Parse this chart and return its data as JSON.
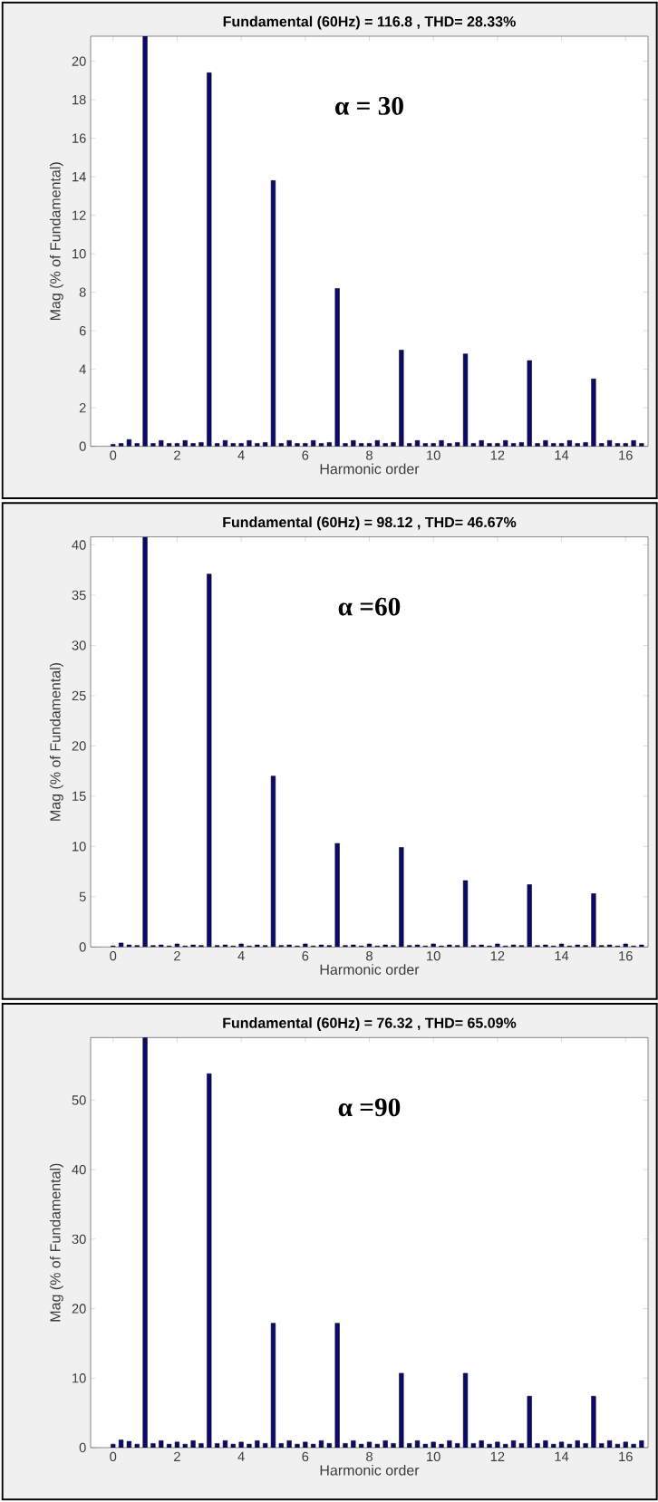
{
  "chart_data": [
    {
      "type": "bar",
      "title": "Fundamental (60Hz) = 116.8 , THD= 28.33%",
      "xlabel": "Harmonic order",
      "ylabel": "Mag (% of Fundamental)",
      "annotations": [
        "α = 30"
      ],
      "color": "#0a0a6e",
      "x": [
        0,
        0.25,
        0.5,
        0.75,
        1,
        1.25,
        1.5,
        1.75,
        2,
        2.25,
        2.5,
        2.75,
        3,
        3.25,
        3.5,
        3.75,
        4,
        4.25,
        4.5,
        4.75,
        5,
        5.25,
        5.5,
        5.75,
        6,
        6.25,
        6.5,
        6.75,
        7,
        7.25,
        7.5,
        7.75,
        8,
        8.25,
        8.5,
        8.75,
        9,
        9.25,
        9.5,
        9.75,
        10,
        10.25,
        10.5,
        10.75,
        11,
        11.25,
        11.5,
        11.75,
        12,
        12.25,
        12.5,
        12.75,
        13,
        13.25,
        13.5,
        13.75,
        14,
        14.25,
        14.5,
        14.75,
        15,
        15.25,
        15.5,
        15.75,
        16,
        16.25,
        16.5
      ],
      "values": [
        0.1,
        0.15,
        0.35,
        0.15,
        21.3,
        0.15,
        0.3,
        0.15,
        0.15,
        0.3,
        0.15,
        0.2,
        19.4,
        0.15,
        0.3,
        0.15,
        0.15,
        0.3,
        0.15,
        0.2,
        13.8,
        0.15,
        0.3,
        0.15,
        0.15,
        0.3,
        0.15,
        0.2,
        8.2,
        0.15,
        0.3,
        0.15,
        0.15,
        0.3,
        0.15,
        0.2,
        5.0,
        0.15,
        0.3,
        0.15,
        0.15,
        0.3,
        0.15,
        0.2,
        4.8,
        0.15,
        0.3,
        0.15,
        0.15,
        0.3,
        0.15,
        0.2,
        4.45,
        0.15,
        0.3,
        0.15,
        0.15,
        0.3,
        0.15,
        0.2,
        3.5,
        0.15,
        0.3,
        0.15,
        0.15,
        0.3,
        0.15
      ],
      "xlim": [
        -0.7,
        16.7
      ],
      "ylim": [
        0,
        21.3
      ],
      "xticks": [
        0,
        2,
        4,
        6,
        8,
        10,
        12,
        14,
        16
      ],
      "yticks": [
        0,
        2,
        4,
        6,
        8,
        10,
        12,
        14,
        16,
        18,
        20
      ]
    },
    {
      "type": "bar",
      "title": "Fundamental (60Hz) = 98.12 , THD= 46.67%",
      "xlabel": "Harmonic order",
      "ylabel": "Mag (% of Fundamental)",
      "annotations": [
        "α =60"
      ],
      "color": "#0a0a6e",
      "x": [
        0,
        0.25,
        0.5,
        0.75,
        1,
        1.25,
        1.5,
        1.75,
        2,
        2.25,
        2.5,
        2.75,
        3,
        3.25,
        3.5,
        3.75,
        4,
        4.25,
        4.5,
        4.75,
        5,
        5.25,
        5.5,
        5.75,
        6,
        6.25,
        6.5,
        6.75,
        7,
        7.25,
        7.5,
        7.75,
        8,
        8.25,
        8.5,
        8.75,
        9,
        9.25,
        9.5,
        9.75,
        10,
        10.25,
        10.5,
        10.75,
        11,
        11.25,
        11.5,
        11.75,
        12,
        12.25,
        12.5,
        12.75,
        13,
        13.25,
        13.5,
        13.75,
        14,
        14.25,
        14.5,
        14.75,
        15,
        15.25,
        15.5,
        15.75,
        16,
        16.25,
        16.5
      ],
      "values": [
        0.1,
        0.4,
        0.2,
        0.15,
        40.8,
        0.15,
        0.2,
        0.1,
        0.3,
        0.1,
        0.2,
        0.15,
        37.1,
        0.15,
        0.2,
        0.1,
        0.3,
        0.1,
        0.2,
        0.15,
        17.0,
        0.15,
        0.2,
        0.1,
        0.3,
        0.1,
        0.2,
        0.15,
        10.3,
        0.15,
        0.2,
        0.1,
        0.3,
        0.1,
        0.2,
        0.15,
        9.9,
        0.15,
        0.2,
        0.1,
        0.3,
        0.1,
        0.2,
        0.15,
        6.6,
        0.15,
        0.2,
        0.1,
        0.3,
        0.1,
        0.2,
        0.15,
        6.2,
        0.15,
        0.2,
        0.1,
        0.3,
        0.1,
        0.2,
        0.15,
        5.3,
        0.15,
        0.2,
        0.1,
        0.3,
        0.1,
        0.2
      ],
      "xlim": [
        -0.7,
        16.7
      ],
      "ylim": [
        0,
        40.8
      ],
      "xticks": [
        0,
        2,
        4,
        6,
        8,
        10,
        12,
        14,
        16
      ],
      "yticks": [
        0,
        5,
        10,
        15,
        20,
        25,
        30,
        35,
        40
      ]
    },
    {
      "type": "bar",
      "title": "Fundamental (60Hz) = 76.32 , THD= 65.09%",
      "xlabel": "Harmonic order",
      "ylabel": "Mag (% of Fundamental)",
      "annotations": [
        "α =90"
      ],
      "color": "#0a0a6e",
      "x": [
        0,
        0.25,
        0.5,
        0.75,
        1,
        1.25,
        1.5,
        1.75,
        2,
        2.25,
        2.5,
        2.75,
        3,
        3.25,
        3.5,
        3.75,
        4,
        4.25,
        4.5,
        4.75,
        5,
        5.25,
        5.5,
        5.75,
        6,
        6.25,
        6.5,
        6.75,
        7,
        7.25,
        7.5,
        7.75,
        8,
        8.25,
        8.5,
        8.75,
        9,
        9.25,
        9.5,
        9.75,
        10,
        10.25,
        10.5,
        10.75,
        11,
        11.25,
        11.5,
        11.75,
        12,
        12.25,
        12.5,
        12.75,
        13,
        13.25,
        13.5,
        13.75,
        14,
        14.25,
        14.5,
        14.75,
        15,
        15.25,
        15.5,
        15.75,
        16,
        16.25,
        16.5
      ],
      "values": [
        0.5,
        1.1,
        0.9,
        0.5,
        59,
        0.6,
        1.0,
        0.5,
        0.8,
        0.5,
        1.0,
        0.6,
        53.8,
        0.6,
        1.0,
        0.5,
        0.8,
        0.5,
        1.0,
        0.6,
        17.9,
        0.6,
        1.0,
        0.5,
        0.8,
        0.5,
        1.0,
        0.6,
        17.9,
        0.6,
        1.0,
        0.5,
        0.8,
        0.5,
        1.0,
        0.6,
        10.7,
        0.6,
        1.0,
        0.5,
        0.8,
        0.5,
        1.0,
        0.6,
        10.7,
        0.6,
        1.0,
        0.5,
        0.8,
        0.5,
        1.0,
        0.6,
        7.4,
        0.6,
        1.0,
        0.5,
        0.8,
        0.5,
        1.0,
        0.6,
        7.4,
        0.6,
        1.0,
        0.5,
        0.8,
        0.5,
        1.0
      ],
      "xlim": [
        -0.7,
        16.7
      ],
      "ylim": [
        0,
        59
      ],
      "xticks": [
        0,
        2,
        4,
        6,
        8,
        10,
        12,
        14,
        16
      ],
      "yticks": [
        0,
        10,
        20,
        30,
        40,
        50
      ]
    }
  ]
}
